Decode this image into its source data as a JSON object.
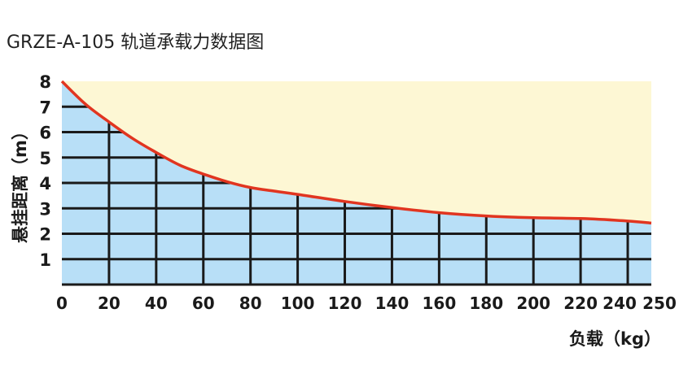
{
  "chart_data": {
    "type": "area",
    "title": "GRZE-A-105 轨道承载力数据图",
    "xlabel": "负载（kg）",
    "ylabel": "悬挂距离（m）",
    "xlim": [
      0,
      250
    ],
    "ylim": [
      0,
      8
    ],
    "x_ticks": [
      0,
      20,
      40,
      60,
      80,
      100,
      120,
      140,
      160,
      180,
      200,
      220,
      240,
      250
    ],
    "y_ticks": [
      1,
      2,
      3,
      4,
      5,
      6,
      7,
      8
    ],
    "grid": true,
    "series": [
      {
        "x": [
          0,
          10,
          20,
          30,
          40,
          50,
          60,
          70,
          80,
          90,
          100,
          120,
          140,
          160,
          180,
          200,
          220,
          240,
          250
        ],
        "y": [
          8.0,
          7.1,
          6.4,
          5.75,
          5.2,
          4.7,
          4.35,
          4.05,
          3.82,
          3.68,
          3.55,
          3.27,
          3.03,
          2.83,
          2.7,
          2.63,
          2.6,
          2.5,
          2.42
        ]
      }
    ],
    "colors": {
      "above_fill": "#fdf7d4",
      "below_fill": "#b8dff7",
      "line": "#e13520",
      "grid": "#1a1a1a"
    }
  }
}
